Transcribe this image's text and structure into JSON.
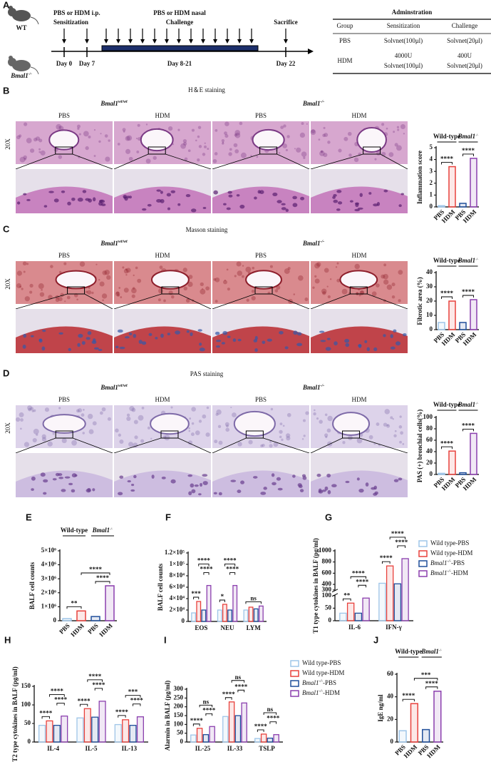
{
  "panel_labels": [
    "A",
    "B",
    "C",
    "D",
    "E",
    "F",
    "G",
    "H",
    "I",
    "J"
  ],
  "protocol": {
    "sensitization": [
      "PBS or HDM i.p.",
      "Sensitization"
    ],
    "challenge": [
      "PBS or HDM nasal",
      "Challenge"
    ],
    "sacrifice": "Sacrifice",
    "days": [
      "Day 0",
      "Day 7",
      "Day 8-21",
      "Day 22"
    ],
    "mice": [
      "WT",
      {
        "text": "Bmal1",
        "sup": "-/-"
      }
    ]
  },
  "table": {
    "title": "Adminstration",
    "header": [
      "Group",
      "Sensitization",
      "Challenge"
    ],
    "rows": [
      [
        [
          "PBS"
        ],
        [
          "Solvnet(100μl)"
        ],
        [
          "Solvnet(20μl)"
        ]
      ],
      [
        [
          "HDM"
        ],
        [
          "4000U",
          "Solvnet(100μl)"
        ],
        [
          "400U",
          "Solvnet(20μl)"
        ]
      ]
    ]
  },
  "staining": [
    {
      "title": "H＆E staining",
      "magnification": "20X",
      "groups": [
        {
          "text": "Bmal1",
          "sup": "wt/wt"
        },
        {
          "text": "Bmal1",
          "sup": "-/-"
        }
      ],
      "columns": [
        "PBS",
        "HDM",
        "PBS",
        "HDM"
      ]
    },
    {
      "title": "Masson staining",
      "magnification": "20X",
      "groups": [
        {
          "text": "Bmal1",
          "sup": "wt/wt"
        },
        {
          "text": "Bmal1",
          "sup": "-/-"
        }
      ],
      "columns": [
        "PBS",
        "HDM",
        "PBS",
        "HDM"
      ]
    },
    {
      "title": "PAS staining",
      "magnification": "20X",
      "groups": [
        {
          "text": "Bmal1",
          "sup": "wt/wt"
        },
        {
          "text": "Bmal1",
          "sup": "-/-"
        }
      ],
      "columns": [
        "PBS",
        "HDM",
        "PBS",
        "HDM"
      ]
    }
  ],
  "chart_data": [
    {
      "type": "bar",
      "ylabel": "Inflammation score",
      "categories": [
        "PBS",
        "HDM",
        "PBS",
        "HDM"
      ],
      "values": [
        0.1,
        3.4,
        0.3,
        4.1
      ],
      "colors": [
        "#9ec5e8",
        "#e8413c",
        "#1f4e9a",
        "#8b3fae"
      ],
      "ylim": [
        0,
        5
      ],
      "yticks": [
        0,
        1,
        2,
        3,
        4,
        5
      ],
      "groups": [
        "Wild-type",
        {
          "text": "Bmal1",
          "sup": "-/-"
        }
      ],
      "annotations": [
        "****",
        "****"
      ]
    },
    {
      "type": "bar",
      "ylabel": "Fibrotic area (%)",
      "categories": [
        "PBS",
        "HDM",
        "PBS",
        "HDM"
      ],
      "values": [
        5,
        20,
        5,
        21
      ],
      "colors": [
        "#9ec5e8",
        "#e8413c",
        "#1f4e9a",
        "#8b3fae"
      ],
      "ylim": [
        0,
        40
      ],
      "yticks": [
        0,
        10,
        20,
        30,
        40
      ],
      "groups": [
        "Wild-type",
        {
          "text": "Bmal1",
          "sup": "-/-"
        }
      ],
      "annotations": [
        "****",
        "****"
      ]
    },
    {
      "type": "bar",
      "ylabel": "PAS (+) bronchial cells(%)",
      "categories": [
        "PBS",
        "HDM",
        "PBS",
        "HDM"
      ],
      "values": [
        2,
        41,
        3,
        72
      ],
      "colors": [
        "#9ec5e8",
        "#e8413c",
        "#1f4e9a",
        "#8b3fae"
      ],
      "ylim": [
        0,
        100
      ],
      "yticks": [
        0,
        20,
        40,
        60,
        80,
        100
      ],
      "groups": [
        "Wild-type",
        {
          "text": "Bmal1",
          "sup": "-/-"
        }
      ],
      "annotations": [
        "****",
        "****"
      ]
    },
    {
      "type": "bar",
      "ylabel": "BALF cell counts",
      "categories": [
        "PBS",
        "HDM",
        "PBS",
        "HDM"
      ],
      "values": [
        150000,
        700000,
        300000,
        2500000
      ],
      "colors": [
        "#9ec5e8",
        "#e8413c",
        "#1f4e9a",
        "#8b3fae"
      ],
      "ylim": [
        0,
        5000000
      ],
      "yticks": [
        0,
        {
          "value": 1000000,
          "label": "1×10⁶"
        },
        {
          "value": 2000000,
          "label": "2×10⁶"
        },
        {
          "value": 3000000,
          "label": "3×10⁶"
        },
        {
          "value": 4000000,
          "label": "4×10⁶"
        },
        {
          "value": 5000000,
          "label": "5×10⁶"
        }
      ],
      "groups": [
        "Wild-type",
        {
          "text": "Bmal1",
          "sup": "-/-"
        }
      ],
      "annotations": [
        "**",
        "****",
        "****"
      ]
    },
    {
      "type": "grouped_bar",
      "ylabel": "BALF cell counts",
      "categories": [
        "EOS",
        "NEU",
        "LYM"
      ],
      "series": [
        {
          "color": "#9ec5e8",
          "values": [
            15000,
            20000,
            20000
          ]
        },
        {
          "color": "#e8413c",
          "values": [
            35000,
            30000,
            25000
          ]
        },
        {
          "color": "#1f4e9a",
          "values": [
            20000,
            20000,
            22000
          ]
        },
        {
          "color": "#8b3fae",
          "values": [
            63000,
            63000,
            27000
          ]
        }
      ],
      "ylim": [
        0,
        120000
      ],
      "yticks": [
        0,
        {
          "value": 20000,
          "label": "2×10⁴"
        },
        {
          "value": 40000,
          "label": "4×10⁴"
        },
        {
          "value": 60000,
          "label": "6×10⁴"
        },
        {
          "value": 80000,
          "label": "8×10⁴"
        },
        {
          "value": 100000,
          "label": "1×10⁵"
        },
        {
          "value": 120000,
          "label": "1.2×10⁵"
        }
      ],
      "annotations": [
        "***",
        "****",
        "****",
        "*",
        "****",
        "****",
        "ns"
      ]
    },
    {
      "type": "grouped_bar",
      "ylabel": "T1 type cytokines in BALF (pg/ml)",
      "categories": [
        "IL-6",
        "IFN-γ"
      ],
      "series": [
        {
          "name": "Wild type-PBS",
          "color": "#9ec5e8",
          "values": [
            30,
            420
          ]
        },
        {
          "name": "Wild type-HDM",
          "color": "#e8413c",
          "values": [
            70,
            730
          ]
        },
        {
          "name": {
            "text": "Bmal1",
            "sup": "-/-",
            "after": "-PBS"
          },
          "color": "#1f4e9a",
          "values": [
            30,
            410
          ]
        },
        {
          "name": {
            "text": "Bmal1",
            "sup": "-/-",
            "after": "-HDM"
          },
          "color": "#8b3fae",
          "values": [
            90,
            860
          ]
        }
      ],
      "ylim": [
        0,
        1000
      ],
      "ybreak": [
        100,
        300
      ],
      "yticks": [
        0,
        50,
        100,
        300,
        400,
        600,
        800,
        1000
      ],
      "legend": true,
      "annotations": [
        "**",
        "****",
        "****",
        "****",
        "****",
        "****"
      ]
    },
    {
      "type": "grouped_bar",
      "ylabel": "T2 type cytokines in BALF (pg/ml)",
      "categories": [
        "IL-4",
        "IL-5",
        "IL-13"
      ],
      "series": [
        {
          "color": "#9ec5e8",
          "values": [
            45,
            65,
            47
          ]
        },
        {
          "color": "#e8413c",
          "values": [
            57,
            90,
            60
          ]
        },
        {
          "color": "#1f4e9a",
          "values": [
            45,
            67,
            45
          ]
        },
        {
          "color": "#8b3fae",
          "values": [
            70,
            110,
            68
          ]
        }
      ],
      "ylim": [
        0,
        150
      ],
      "yticks": [
        0,
        50,
        100,
        150
      ],
      "annotations": [
        "****",
        "****",
        "****",
        "****",
        "****",
        "****",
        "****",
        "***",
        "****"
      ]
    },
    {
      "type": "grouped_bar",
      "ylabel": "Alarmin in BALF (pg/ml)",
      "categories": [
        "IL-25",
        "IL-33",
        "TSLP"
      ],
      "series": [
        {
          "name": "Wild type-PBS",
          "color": "#9ec5e8",
          "values": [
            40,
            145,
            20
          ]
        },
        {
          "name": "Wild type-HDM",
          "color": "#e8413c",
          "values": [
            78,
            228,
            45
          ]
        },
        {
          "name": {
            "text": "Bmal1",
            "sup": "-/-",
            "after": "-PBS"
          },
          "color": "#1f4e9a",
          "values": [
            42,
            150,
            22
          ]
        },
        {
          "name": {
            "text": "Bmal1",
            "sup": "-/-",
            "after": "-HDM"
          },
          "color": "#8b3fae",
          "values": [
            88,
            222,
            42
          ]
        }
      ],
      "ylim": [
        0,
        300
      ],
      "yticks": [
        0,
        50,
        100,
        150,
        200,
        250,
        300
      ],
      "legend": true,
      "annotations": [
        "****",
        "ns",
        "****",
        "****",
        "ns",
        "****",
        "****",
        "ns",
        "****"
      ]
    },
    {
      "type": "bar",
      "ylabel": "IgE ng/ml",
      "categories": [
        "PBS",
        "HDM",
        "PBS",
        "HDM"
      ],
      "values": [
        10,
        34,
        11,
        45
      ],
      "colors": [
        "#9ec5e8",
        "#e8413c",
        "#1f4e9a",
        "#8b3fae"
      ],
      "ylim": [
        0,
        60
      ],
      "yticks": [
        0,
        20,
        40,
        60
      ],
      "groups": [
        "Wild-type",
        {
          "text": "Bmal1",
          "sup": "-/-"
        }
      ],
      "annotations": [
        "****",
        "****",
        "***"
      ]
    }
  ]
}
